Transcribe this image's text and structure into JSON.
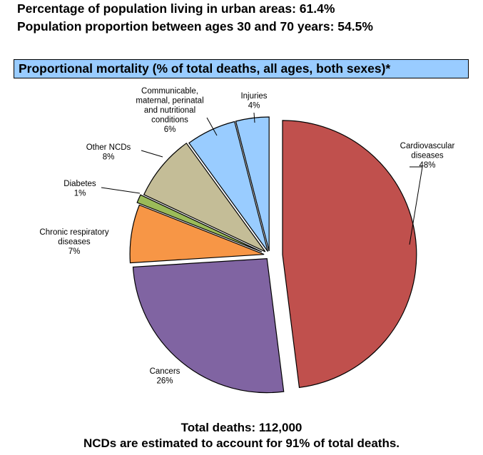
{
  "stats": {
    "urban": "Percentage of population living in urban areas: 61.4%",
    "age_30_70": "Population proportion between ages 30 and 70 years:  54.5%"
  },
  "banner_title": "Proportional mortality (% of total deaths, all ages, both sexes)*",
  "footer": {
    "total": "Total deaths: 112,000",
    "ncd_note": "NCDs are estimated to account for 91% of total deaths."
  },
  "chart_data": {
    "type": "pie",
    "title": "Proportional mortality (% of total deaths, all ages, both sexes)*",
    "slices": [
      {
        "label": [
          "Cardiovascular",
          "diseases"
        ],
        "pct_text": "48%",
        "value": 48,
        "color": "#c0504d"
      },
      {
        "label": [
          "Cancers"
        ],
        "pct_text": "26%",
        "value": 26,
        "color": "#8064a2"
      },
      {
        "label": [
          "Chronic respiratory",
          "diseases"
        ],
        "pct_text": "7%",
        "value": 7,
        "color": "#f79646"
      },
      {
        "label": [
          "Diabetes"
        ],
        "pct_text": "1%",
        "value": 1,
        "color": "#9bbb59"
      },
      {
        "label": [
          "Other NCDs"
        ],
        "pct_text": "8%",
        "value": 8,
        "color": "#c4bd97"
      },
      {
        "label": [
          "Communicable,",
          "maternal, perinatal",
          "and nutritional",
          "conditions"
        ],
        "pct_text": "6%",
        "value": 6,
        "color": "#99ccff"
      },
      {
        "label": [
          "Injuries"
        ],
        "pct_text": "4%",
        "value": 4,
        "color": "#99ccff"
      }
    ]
  }
}
